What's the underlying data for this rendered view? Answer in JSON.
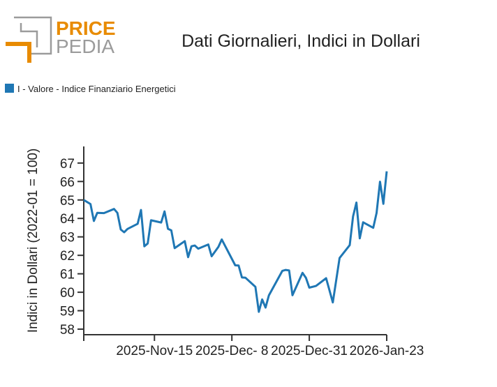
{
  "logo": {
    "line1": "PRICE",
    "line2": "PEDIA"
  },
  "colors": {
    "series": "#1f77b4",
    "logo_orange": "#e88b00",
    "logo_gray": "#9b9b9b",
    "axis": "#333333"
  },
  "chart_data": {
    "type": "line",
    "title": "Dati Giornalieri, Indici in Dollari",
    "ylabel": "Indici in Dollari (2022-01 = 100)",
    "xlabel": "",
    "ylim": [
      57.7,
      67.9
    ],
    "xlim": [
      "2025-10-25",
      "2026-01-23"
    ],
    "yticks": [
      58,
      59,
      60,
      61,
      62,
      63,
      64,
      65,
      66,
      67
    ],
    "xticks": [
      {
        "date": "2025-11-15",
        "label": "2025-Nov-15"
      },
      {
        "date": "2025-12-08",
        "label": "2025-Dec- 8"
      },
      {
        "date": "2025-12-31",
        "label": "2025-Dec-31"
      },
      {
        "date": "2026-01-23",
        "label": "2026-Jan-23"
      }
    ],
    "grid": false,
    "legend_position": "top-left",
    "series": [
      {
        "name": "I - Valore - Indice Finanziario Energetici",
        "color": "#1f77b4",
        "x": [
          "2025-10-25",
          "2025-10-27",
          "2025-10-28",
          "2025-10-29",
          "2025-10-31",
          "2025-11-03",
          "2025-11-04",
          "2025-11-05",
          "2025-11-06",
          "2025-11-07",
          "2025-11-10",
          "2025-11-11",
          "2025-11-12",
          "2025-11-13",
          "2025-11-14",
          "2025-11-17",
          "2025-11-18",
          "2025-11-19",
          "2025-11-20",
          "2025-11-21",
          "2025-11-24",
          "2025-11-25",
          "2025-11-26",
          "2025-11-27",
          "2025-11-28",
          "2025-12-01",
          "2025-12-02",
          "2025-12-04",
          "2025-12-05",
          "2025-12-09",
          "2025-12-10",
          "2025-12-11",
          "2025-12-12",
          "2025-12-15",
          "2025-12-16",
          "2025-12-17",
          "2025-12-18",
          "2025-12-19",
          "2025-12-23",
          "2025-12-24",
          "2025-12-25",
          "2025-12-26",
          "2025-12-29",
          "2025-12-30",
          "2025-12-31",
          "2026-01-02",
          "2026-01-05",
          "2026-01-07",
          "2026-01-09",
          "2026-01-12",
          "2026-01-13",
          "2026-01-14",
          "2026-01-15",
          "2026-01-16",
          "2026-01-19",
          "2026-01-20",
          "2026-01-21",
          "2026-01-22",
          "2026-01-23"
        ],
        "values": [
          65.0,
          64.78,
          63.86,
          64.3,
          64.29,
          64.51,
          64.3,
          63.4,
          63.25,
          63.43,
          63.71,
          64.46,
          62.49,
          62.64,
          63.9,
          63.78,
          64.38,
          63.44,
          63.35,
          62.39,
          62.77,
          61.9,
          62.49,
          62.53,
          62.36,
          62.59,
          61.95,
          62.46,
          62.86,
          61.46,
          61.45,
          60.8,
          60.79,
          60.29,
          58.94,
          59.61,
          59.17,
          59.83,
          61.16,
          61.21,
          61.18,
          59.84,
          61.05,
          60.78,
          60.25,
          60.34,
          60.76,
          59.45,
          61.86,
          62.55,
          64.11,
          64.86,
          62.92,
          63.79,
          63.49,
          64.3,
          65.99,
          64.79,
          66.55
        ]
      }
    ]
  }
}
